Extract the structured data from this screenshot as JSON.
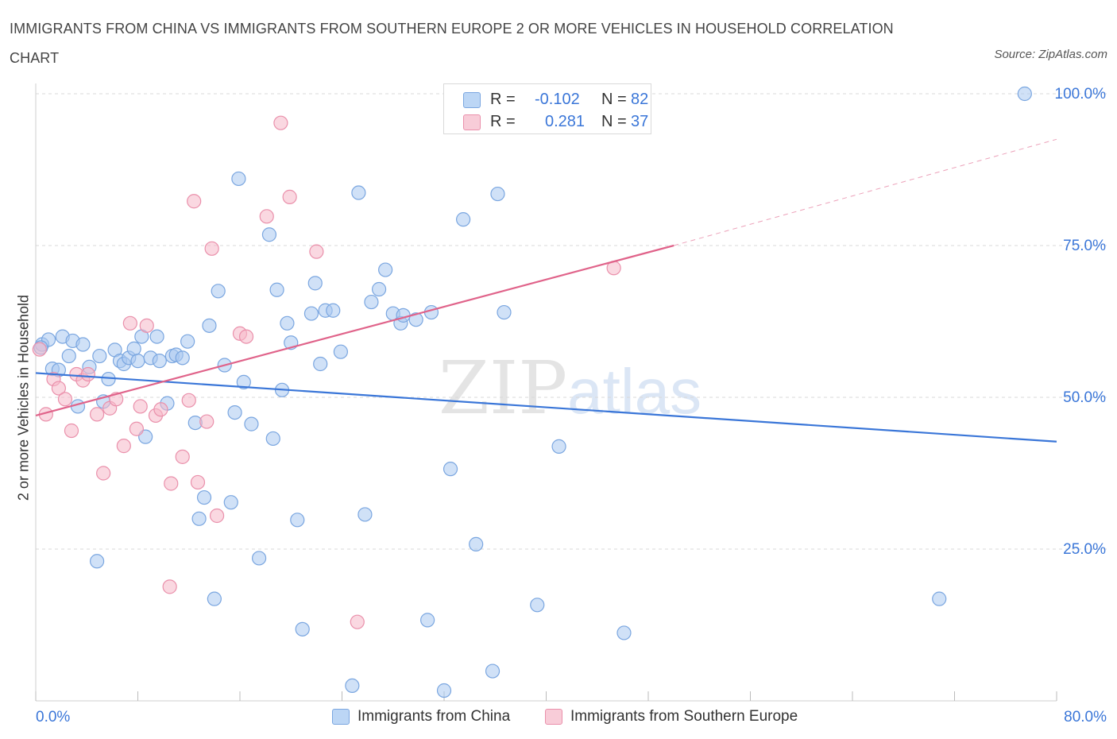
{
  "title": "IMMIGRANTS FROM CHINA VS IMMIGRANTS FROM SOUTHERN EUROPE 2 OR MORE VEHICLES IN HOUSEHOLD CORRELATION CHART",
  "source": "Source: ZipAtlas.com",
  "watermark": {
    "zip": "ZIP",
    "atlas": "atlas"
  },
  "legend": {
    "rows": [
      {
        "r_label": "R =",
        "r_value": "-0.102",
        "n_label": "N =",
        "n_value": "82",
        "color": "#a9c8f0"
      },
      {
        "r_label": "R =",
        "r_value": "0.281",
        "n_label": "N =",
        "n_value": "37",
        "color": "#f5b8c8"
      }
    ]
  },
  "bottom_legend": [
    "Immigrants from China",
    "Immigrants from Southern Europe"
  ],
  "colors": {
    "china": "#a9c8f0",
    "china_stroke": "#7aa6e0",
    "china_line": "#3a76d8",
    "europe": "#f5b8c8",
    "europe_stroke": "#ea90ab",
    "europe_line": "#e0638a",
    "tick_text": "#3a76d8"
  },
  "chart_data": {
    "type": "scatter",
    "xlabel": "",
    "ylabel": "2 or more Vehicles in Household",
    "xlim": [
      0,
      80
    ],
    "ylim": [
      0,
      100
    ],
    "x_tick_labels": [
      "0.0%",
      "80.0%"
    ],
    "y_ticks": [
      25,
      50,
      75,
      100
    ],
    "y_tick_labels": [
      "25.0%",
      "50.0%",
      "75.0%",
      "100.0%"
    ],
    "grid": true,
    "series": [
      {
        "name": "Immigrants from China",
        "trend": {
          "x": [
            0,
            80
          ],
          "y": [
            54.0,
            42.7
          ],
          "dashed_from": null
        },
        "points": [
          [
            0.5,
            58.7
          ],
          [
            1.0,
            59.5
          ],
          [
            1.3,
            54.7
          ],
          [
            1.8,
            54.5
          ],
          [
            2.1,
            60.0
          ],
          [
            2.6,
            56.8
          ],
          [
            2.9,
            59.3
          ],
          [
            3.3,
            48.5
          ],
          [
            3.7,
            58.7
          ],
          [
            4.2,
            55.0
          ],
          [
            4.8,
            23.0
          ],
          [
            5.0,
            56.8
          ],
          [
            5.3,
            49.3
          ],
          [
            5.7,
            53.0
          ],
          [
            6.2,
            57.8
          ],
          [
            6.6,
            56.0
          ],
          [
            6.9,
            55.5
          ],
          [
            7.3,
            56.5
          ],
          [
            7.7,
            58.0
          ],
          [
            8.0,
            56.0
          ],
          [
            8.3,
            60.0
          ],
          [
            8.6,
            43.5
          ],
          [
            9.0,
            56.5
          ],
          [
            9.5,
            60.0
          ],
          [
            9.7,
            56.0
          ],
          [
            10.3,
            49.0
          ],
          [
            10.7,
            56.8
          ],
          [
            11.0,
            57.0
          ],
          [
            11.5,
            56.5
          ],
          [
            11.9,
            59.2
          ],
          [
            12.5,
            45.8
          ],
          [
            12.8,
            30.0
          ],
          [
            13.2,
            33.5
          ],
          [
            13.6,
            61.8
          ],
          [
            14.0,
            16.8
          ],
          [
            14.3,
            67.5
          ],
          [
            14.8,
            55.3
          ],
          [
            15.3,
            32.7
          ],
          [
            15.6,
            47.5
          ],
          [
            15.9,
            86.0
          ],
          [
            16.3,
            52.5
          ],
          [
            16.9,
            45.6
          ],
          [
            17.5,
            23.5
          ],
          [
            18.3,
            76.8
          ],
          [
            18.6,
            43.2
          ],
          [
            18.9,
            67.7
          ],
          [
            19.3,
            51.2
          ],
          [
            19.7,
            62.2
          ],
          [
            20.0,
            59.0
          ],
          [
            20.5,
            29.8
          ],
          [
            20.9,
            11.8
          ],
          [
            21.6,
            63.8
          ],
          [
            21.9,
            68.8
          ],
          [
            22.3,
            55.5
          ],
          [
            22.7,
            64.3
          ],
          [
            23.3,
            64.3
          ],
          [
            23.9,
            57.5
          ],
          [
            24.8,
            2.5
          ],
          [
            25.3,
            83.7
          ],
          [
            25.8,
            30.7
          ],
          [
            26.3,
            65.7
          ],
          [
            26.9,
            67.8
          ],
          [
            27.4,
            71.0
          ],
          [
            28.0,
            63.8
          ],
          [
            28.6,
            62.2
          ],
          [
            28.8,
            63.5
          ],
          [
            29.8,
            62.8
          ],
          [
            30.7,
            13.3
          ],
          [
            31.0,
            64.0
          ],
          [
            32.0,
            1.7
          ],
          [
            32.5,
            38.2
          ],
          [
            33.5,
            79.3
          ],
          [
            34.5,
            25.8
          ],
          [
            35.8,
            4.9
          ],
          [
            36.2,
            83.5
          ],
          [
            36.7,
            64.0
          ],
          [
            39.3,
            15.8
          ],
          [
            41.0,
            41.9
          ],
          [
            46.1,
            11.2
          ],
          [
            70.8,
            16.8
          ],
          [
            77.5,
            100.0
          ],
          [
            0.4,
            58.2
          ]
        ]
      },
      {
        "name": "Immigrants from Southern Europe",
        "trend": {
          "x": [
            0,
            50
          ],
          "y": [
            47.0,
            75.0
          ],
          "dashed_to": [
            80,
            92.5
          ]
        },
        "points": [
          [
            0.3,
            57.9
          ],
          [
            0.8,
            47.2
          ],
          [
            1.4,
            53.0
          ],
          [
            1.8,
            51.5
          ],
          [
            2.3,
            49.7
          ],
          [
            2.8,
            44.5
          ],
          [
            3.2,
            53.8
          ],
          [
            3.7,
            52.8
          ],
          [
            4.1,
            53.8
          ],
          [
            4.8,
            47.2
          ],
          [
            5.3,
            37.5
          ],
          [
            5.8,
            48.2
          ],
          [
            6.3,
            49.7
          ],
          [
            6.9,
            42.0
          ],
          [
            7.4,
            62.2
          ],
          [
            7.9,
            44.8
          ],
          [
            8.2,
            48.5
          ],
          [
            8.7,
            61.8
          ],
          [
            9.4,
            47.0
          ],
          [
            9.8,
            48.0
          ],
          [
            10.5,
            18.8
          ],
          [
            10.6,
            35.8
          ],
          [
            11.5,
            40.2
          ],
          [
            12.0,
            49.5
          ],
          [
            12.4,
            82.3
          ],
          [
            12.7,
            36.0
          ],
          [
            13.4,
            46.0
          ],
          [
            13.8,
            74.5
          ],
          [
            14.2,
            30.5
          ],
          [
            16.0,
            60.5
          ],
          [
            16.5,
            60.0
          ],
          [
            18.1,
            79.8
          ],
          [
            19.2,
            95.2
          ],
          [
            19.9,
            83.0
          ],
          [
            22.0,
            74.0
          ],
          [
            25.2,
            13.0
          ],
          [
            45.3,
            71.3
          ]
        ]
      }
    ]
  }
}
